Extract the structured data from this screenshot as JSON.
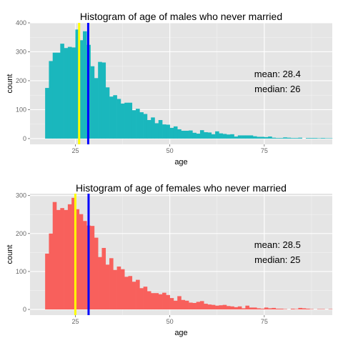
{
  "chart_data": [
    {
      "type": "bar",
      "title": "Histogram of age of males who never married",
      "xlabel": "age",
      "ylabel": "count",
      "xlim": [
        13,
        93
      ],
      "ylim": [
        -20,
        400
      ],
      "xticks": [
        25,
        50,
        75
      ],
      "yticks": [
        0,
        100,
        200,
        300,
        400
      ],
      "grid": true,
      "bar_color": "#1ab7bd",
      "bin_start": 17,
      "bin_width": 1,
      "values": [
        175,
        268,
        297,
        297,
        328,
        313,
        317,
        315,
        377,
        340,
        371,
        324,
        250,
        209,
        265,
        263,
        177,
        145,
        150,
        137,
        121,
        124,
        124,
        98,
        103,
        91,
        85,
        64,
        73,
        53,
        64,
        49,
        48,
        37,
        42,
        32,
        27,
        27,
        28,
        20,
        17,
        29,
        22,
        21,
        15,
        25,
        18,
        16,
        14,
        15,
        7,
        11,
        11,
        11,
        11,
        8,
        6,
        6,
        5,
        7,
        3,
        2,
        2,
        4,
        3,
        2,
        2,
        3,
        0,
        2,
        2,
        2,
        1,
        2,
        1,
        1,
        0
      ],
      "reference_lines": [
        {
          "name": "median",
          "x": 26,
          "color": "#ffff00"
        },
        {
          "name": "mean",
          "x": 28.4,
          "color": "#0000ff"
        }
      ],
      "annotation": {
        "mean_text": "mean: 28.4",
        "median_text": "median: 26"
      }
    },
    {
      "type": "bar",
      "title": "Histogram of age of females who never married",
      "xlabel": "age",
      "ylabel": "count",
      "xlim": [
        13,
        93
      ],
      "ylim": [
        -15,
        305
      ],
      "xticks": [
        25,
        50,
        75
      ],
      "yticks": [
        0,
        100,
        200,
        300
      ],
      "grid": true,
      "bar_color": "#f8605c",
      "bin_start": 17,
      "bin_width": 1,
      "values": [
        147,
        200,
        283,
        262,
        267,
        262,
        277,
        294,
        264,
        251,
        233,
        221,
        220,
        189,
        138,
        162,
        118,
        135,
        104,
        113,
        106,
        86,
        88,
        73,
        78,
        56,
        60,
        48,
        43,
        43,
        40,
        44,
        38,
        30,
        23,
        35,
        25,
        23,
        18,
        17,
        20,
        22,
        15,
        13,
        12,
        10,
        11,
        12,
        9,
        8,
        6,
        8,
        3,
        10,
        5,
        5,
        3,
        2,
        5,
        3,
        4,
        2,
        2,
        1,
        0,
        2,
        1,
        4,
        3,
        2,
        1,
        0,
        1,
        1,
        0,
        1,
        0
      ],
      "reference_lines": [
        {
          "name": "median",
          "x": 25,
          "color": "#ffff00"
        },
        {
          "name": "mean",
          "x": 28.5,
          "color": "#0000ff"
        }
      ],
      "annotation": {
        "mean_text": "mean: 28.5",
        "median_text": "median: 25"
      }
    }
  ]
}
